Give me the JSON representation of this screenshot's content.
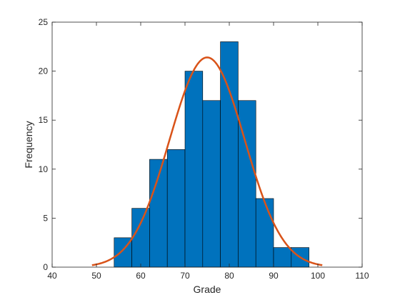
{
  "chart_data": {
    "type": "bar",
    "title": "",
    "xlabel": "Grade",
    "ylabel": "Frequency",
    "xlim": [
      40,
      110
    ],
    "ylim": [
      0,
      25
    ],
    "xticks": [
      40,
      50,
      60,
      70,
      80,
      90,
      100,
      110
    ],
    "yticks": [
      0,
      5,
      10,
      15,
      20,
      25
    ],
    "grid": false,
    "bins": [
      {
        "x0": 54,
        "x1": 58,
        "count": 3
      },
      {
        "x0": 58,
        "x1": 62,
        "count": 6
      },
      {
        "x0": 62,
        "x1": 66,
        "count": 11
      },
      {
        "x0": 66,
        "x1": 70,
        "count": 12
      },
      {
        "x0": 70,
        "x1": 74,
        "count": 20
      },
      {
        "x0": 74,
        "x1": 78,
        "count": 17
      },
      {
        "x0": 78,
        "x1": 82,
        "count": 23
      },
      {
        "x0": 82,
        "x1": 86,
        "count": 17
      },
      {
        "x0": 86,
        "x1": 90,
        "count": 7
      },
      {
        "x0": 90,
        "x1": 94,
        "count": 2
      },
      {
        "x0": 94,
        "x1": 98,
        "count": 2
      }
    ],
    "fit_curve": {
      "type": "normal",
      "mean": 75,
      "peak": 21.4,
      "sd": 8.5,
      "x_range": [
        49,
        101
      ]
    },
    "colors": {
      "bar_fill": "#0072BD",
      "bar_edge": "#000000",
      "curve": "#D95319",
      "axis": "#262626"
    }
  }
}
